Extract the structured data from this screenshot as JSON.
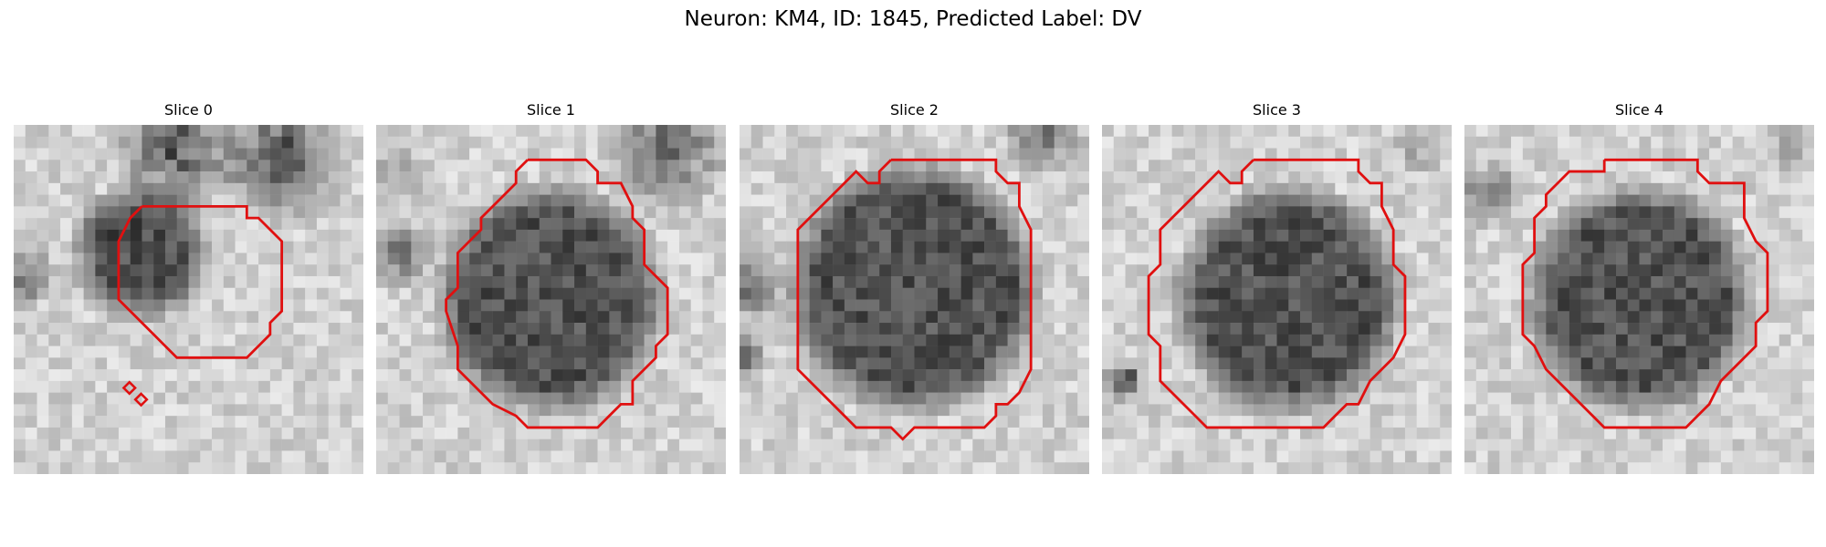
{
  "figure": {
    "suptitle": "Neuron: KM4, ID: 1845, Predicted Label: DV"
  },
  "panels": [
    {
      "title": "Slice 0",
      "blob_center": [
        11,
        11
      ],
      "blob_radius": 5,
      "contour_open": true
    },
    {
      "title": "Slice 1",
      "blob_center": [
        15,
        15
      ],
      "blob_radius": 9
    },
    {
      "title": "Slice 2",
      "blob_center": [
        15,
        14
      ],
      "blob_radius": 10
    },
    {
      "title": "Slice 3",
      "blob_center": [
        16,
        15
      ],
      "blob_radius": 9
    },
    {
      "title": "Slice 4",
      "blob_center": [
        15,
        15
      ],
      "blob_radius": 9
    }
  ],
  "colors": {
    "contour": "#e01010"
  }
}
